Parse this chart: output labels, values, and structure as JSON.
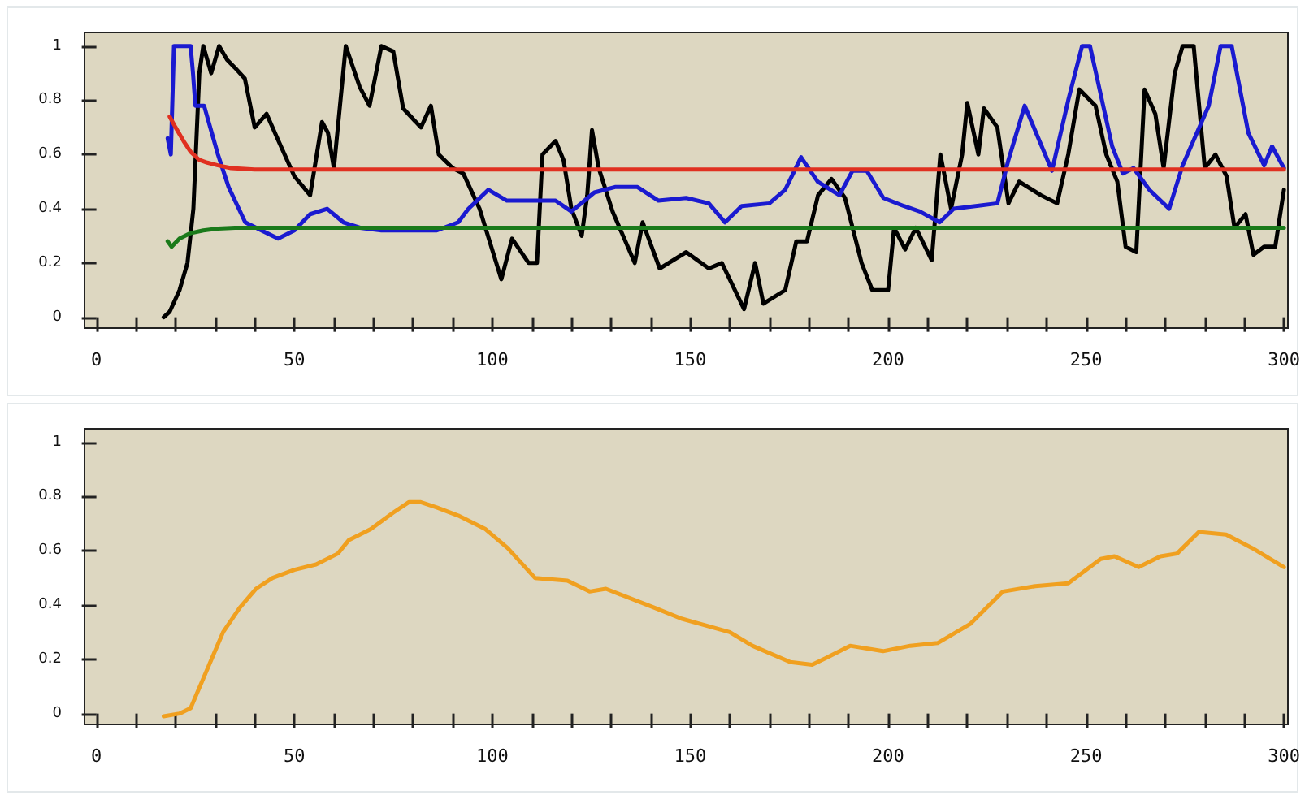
{
  "chart_data": [
    {
      "type": "line",
      "xlim": [
        -3,
        301
      ],
      "ylim": [
        -0.04,
        1.05
      ],
      "xticks": [
        0,
        {
          "value": 10,
          "label": null
        },
        {
          "value": 20,
          "label": null
        },
        {
          "value": 30,
          "label": null
        },
        {
          "value": 40,
          "label": null
        },
        50,
        {
          "value": 60,
          "label": null
        },
        {
          "value": 70,
          "label": null
        },
        {
          "value": 80,
          "label": null
        },
        {
          "value": 90,
          "label": null
        },
        100,
        {
          "value": 110,
          "label": null
        },
        {
          "value": 120,
          "label": null
        },
        {
          "value": 130,
          "label": null
        },
        {
          "value": 140,
          "label": null
        },
        150,
        {
          "value": 160,
          "label": null
        },
        {
          "value": 170,
          "label": null
        },
        {
          "value": 180,
          "label": null
        },
        {
          "value": 190,
          "label": null
        },
        200,
        {
          "value": 210,
          "label": null
        },
        {
          "value": 220,
          "label": null
        },
        {
          "value": 230,
          "label": null
        },
        {
          "value": 240,
          "label": null
        },
        250,
        {
          "value": 260,
          "label": null
        },
        {
          "value": 270,
          "label": null
        },
        {
          "value": 280,
          "label": null
        },
        {
          "value": 290,
          "label": null
        },
        300
      ],
      "yticks": [
        0,
        0.2,
        0.4,
        0.6,
        0.8,
        1
      ],
      "series": [
        {
          "color": "#000000",
          "x": [
            17,
            18.5,
            21,
            23,
            24.5,
            26,
            27,
            29,
            31,
            33,
            35,
            37.5,
            40,
            43,
            46,
            50,
            54,
            57,
            58.5,
            60,
            63,
            66.5,
            69,
            72,
            75,
            77.5,
            82,
            84.5,
            86.5,
            90,
            92.7,
            96.8,
            102.3,
            105,
            109.2,
            111.3,
            112.7,
            116,
            118,
            120,
            122.6,
            124,
            125.2,
            126.9,
            130.4,
            136,
            138,
            142.3,
            149,
            154.7,
            158,
            163.6,
            166.4,
            168.5,
            174,
            176.8,
            179.5,
            182.3,
            185.7,
            189.1,
            193.3,
            196,
            200,
            201.5,
            204.3,
            207,
            211,
            213.2,
            215.9,
            218.7,
            220,
            222.8,
            224.2,
            227.6,
            230.4,
            233.1,
            238.6,
            242.7,
            245.5,
            248.3,
            252.4,
            255.1,
            257.9,
            260,
            262.7,
            264.8,
            267.5,
            269.6,
            272.4,
            274.4,
            277.2,
            280,
            282.7,
            285.5,
            287.5,
            290.3,
            292.3,
            295,
            297.8,
            300
          ],
          "values": [
            0,
            0.02,
            0.1,
            0.2,
            0.4,
            0.9,
            1,
            0.9,
            1,
            0.95,
            0.92,
            0.88,
            0.7,
            0.75,
            0.65,
            0.52,
            0.45,
            0.72,
            0.68,
            0.55,
            1,
            0.85,
            0.78,
            1,
            0.98,
            0.77,
            0.7,
            0.78,
            0.6,
            0.55,
            0.53,
            0.4,
            0.14,
            0.29,
            0.2,
            0.2,
            0.6,
            0.65,
            0.58,
            0.4,
            0.3,
            0.45,
            0.69,
            0.55,
            0.39,
            0.2,
            0.35,
            0.18,
            0.24,
            0.18,
            0.2,
            0.03,
            0.2,
            0.05,
            0.1,
            0.28,
            0.28,
            0.45,
            0.51,
            0.44,
            0.2,
            0.1,
            0.1,
            0.33,
            0.25,
            0.33,
            0.21,
            0.6,
            0.4,
            0.6,
            0.79,
            0.6,
            0.77,
            0.7,
            0.42,
            0.5,
            0.45,
            0.42,
            0.6,
            0.84,
            0.78,
            0.6,
            0.5,
            0.26,
            0.24,
            0.84,
            0.75,
            0.55,
            0.9,
            1,
            1,
            0.55,
            0.6,
            0.52,
            0.33,
            0.38,
            0.23,
            0.26,
            0.26,
            0.47
          ]
        },
        {
          "color": "#1a1ad0",
          "x": [
            18,
            18.8,
            19.6,
            23.8,
            24.4,
            25,
            27.2,
            30.7,
            33.4,
            37.6,
            41.7,
            45.9,
            50,
            54,
            58.3,
            62.4,
            66.6,
            72,
            86,
            91.4,
            94,
            99,
            103.7,
            110.6,
            116,
            120,
            125.8,
            131,
            136.7,
            142,
            149,
            154.7,
            158.8,
            163,
            170,
            174,
            178,
            182.2,
            187.7,
            191,
            194.6,
            198.8,
            204,
            208,
            213,
            216.6,
            227.6,
            230.4,
            234.5,
            241.4,
            245.5,
            249,
            251,
            256.6,
            259.3,
            262,
            266,
            271,
            274.4,
            281,
            284,
            286.8,
            291,
            295,
            297,
            300
          ],
          "values": [
            0.66,
            0.6,
            1,
            1,
            0.9,
            0.78,
            0.78,
            0.6,
            0.48,
            0.35,
            0.32,
            0.29,
            0.32,
            0.38,
            0.4,
            0.35,
            0.33,
            0.32,
            0.32,
            0.35,
            0.4,
            0.47,
            0.43,
            0.43,
            0.43,
            0.39,
            0.46,
            0.48,
            0.48,
            0.43,
            0.44,
            0.42,
            0.35,
            0.41,
            0.42,
            0.47,
            0.59,
            0.5,
            0.45,
            0.54,
            0.54,
            0.44,
            0.41,
            0.39,
            0.35,
            0.4,
            0.42,
            0.58,
            0.78,
            0.54,
            0.8,
            1,
            1,
            0.63,
            0.53,
            0.55,
            0.47,
            0.4,
            0.56,
            0.78,
            1,
            1,
            0.68,
            0.56,
            0.63,
            0.55
          ]
        },
        {
          "color": "#e03020",
          "x": [
            18.5,
            20,
            22,
            23.8,
            26,
            28,
            30.7,
            34,
            40,
            50,
            100,
            150,
            200,
            250,
            300
          ],
          "values": [
            0.74,
            0.7,
            0.65,
            0.61,
            0.58,
            0.57,
            0.56,
            0.55,
            0.545,
            0.545,
            0.545,
            0.545,
            0.545,
            0.545,
            0.545
          ]
        },
        {
          "color": "#1a7a1a",
          "x": [
            18,
            19,
            21,
            23.8,
            27,
            30.7,
            35,
            40,
            50,
            100,
            150,
            200,
            250,
            300
          ],
          "values": [
            0.28,
            0.26,
            0.29,
            0.31,
            0.32,
            0.327,
            0.33,
            0.33,
            0.33,
            0.33,
            0.33,
            0.33,
            0.33,
            0.33
          ]
        }
      ]
    },
    {
      "type": "line",
      "xlim": [
        -3,
        301
      ],
      "ylim": [
        -0.04,
        1.05
      ],
      "xticks": [
        0,
        {
          "value": 10,
          "label": null
        },
        {
          "value": 20,
          "label": null
        },
        {
          "value": 30,
          "label": null
        },
        {
          "value": 40,
          "label": null
        },
        50,
        {
          "value": 60,
          "label": null
        },
        {
          "value": 70,
          "label": null
        },
        {
          "value": 80,
          "label": null
        },
        {
          "value": 90,
          "label": null
        },
        100,
        {
          "value": 110,
          "label": null
        },
        {
          "value": 120,
          "label": null
        },
        {
          "value": 130,
          "label": null
        },
        {
          "value": 140,
          "label": null
        },
        150,
        {
          "value": 160,
          "label": null
        },
        {
          "value": 170,
          "label": null
        },
        {
          "value": 180,
          "label": null
        },
        {
          "value": 190,
          "label": null
        },
        200,
        {
          "value": 210,
          "label": null
        },
        {
          "value": 220,
          "label": null
        },
        {
          "value": 230,
          "label": null
        },
        {
          "value": 240,
          "label": null
        },
        250,
        {
          "value": 260,
          "label": null
        },
        {
          "value": 270,
          "label": null
        },
        {
          "value": 280,
          "label": null
        },
        {
          "value": 290,
          "label": null
        },
        300
      ],
      "yticks": [
        0,
        0.2,
        0.4,
        0.6,
        0.8,
        1
      ],
      "series": [
        {
          "color": "#f0a020",
          "x": [
            17,
            21,
            23.8,
            27.9,
            32,
            36.2,
            40.3,
            44.5,
            50,
            55.5,
            61,
            63.8,
            69.3,
            74.9,
            79,
            81.8,
            86,
            91.4,
            98.3,
            103.9,
            110.8,
            119,
            124.6,
            128.7,
            141,
            147.8,
            160,
            165.7,
            175.3,
            180.8,
            185,
            190.4,
            198.7,
            205.6,
            212.5,
            220.7,
            229,
            237.2,
            245.5,
            253.7,
            257.2,
            263.3,
            268.8,
            273,
            278.5,
            285.4,
            292,
            300
          ],
          "values": [
            -0.01,
            0,
            0.02,
            0.16,
            0.3,
            0.39,
            0.46,
            0.5,
            0.53,
            0.55,
            0.59,
            0.64,
            0.68,
            0.74,
            0.78,
            0.78,
            0.76,
            0.73,
            0.68,
            0.61,
            0.5,
            0.49,
            0.45,
            0.46,
            0.39,
            0.35,
            0.3,
            0.25,
            0.19,
            0.18,
            0.21,
            0.25,
            0.23,
            0.25,
            0.26,
            0.33,
            0.45,
            0.47,
            0.48,
            0.57,
            0.58,
            0.54,
            0.58,
            0.59,
            0.67,
            0.66,
            0.61,
            0.54
          ]
        }
      ]
    }
  ]
}
